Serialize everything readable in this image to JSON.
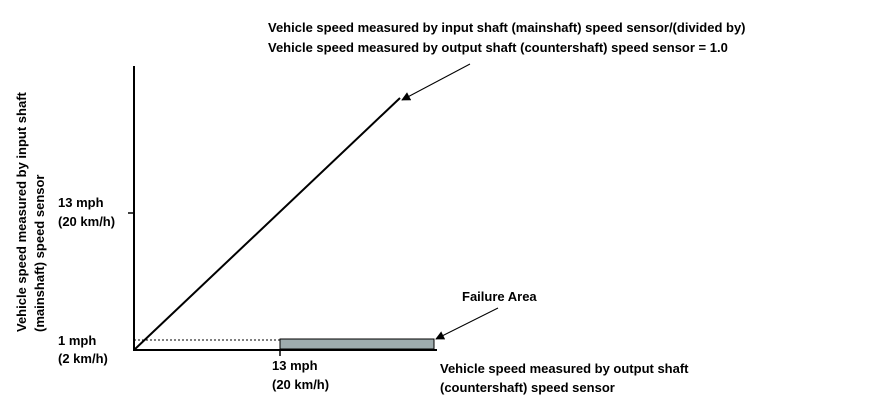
{
  "ratio_note": {
    "line1": "Vehicle speed measured by input shaft (mainshaft) speed sensor/(divided by)",
    "line2": "Vehicle speed measured by output shaft (countershaft) speed sensor = 1.0"
  },
  "y_axis_label": {
    "line1": "Vehicle speed measured by input shaft",
    "line2": "(mainshaft) speed sensor"
  },
  "x_axis_label": {
    "line1": "Vehicle speed measured by output shaft",
    "line2": "(countershaft) speed sensor"
  },
  "y_ticks": {
    "upper": {
      "line1": "13 mph",
      "line2": "(20 km/h)"
    },
    "lower": {
      "line1": "1 mph",
      "line2": "(2 km/h)"
    }
  },
  "x_ticks": {
    "mid": {
      "line1": "13 mph",
      "line2": "(20 km/h)"
    }
  },
  "failure_label": "Failure Area",
  "colors": {
    "failure_fill": "#9eacae",
    "line": "#000000"
  }
}
